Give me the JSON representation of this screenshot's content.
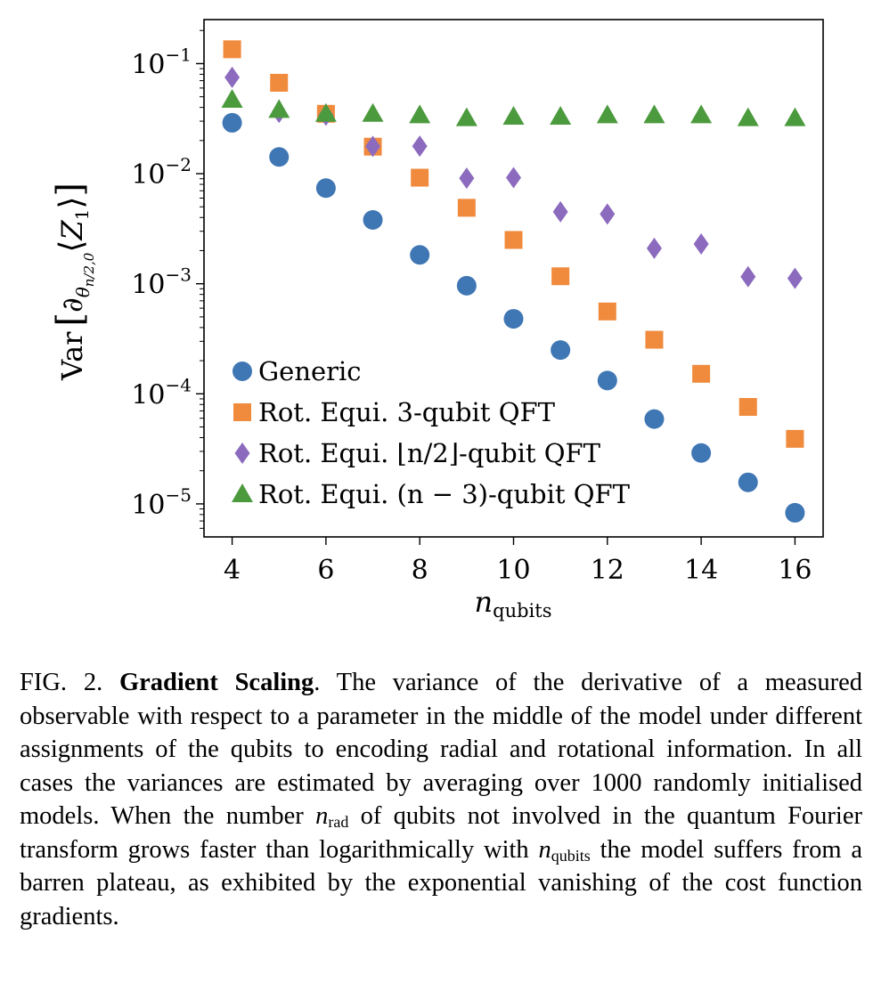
{
  "chart_data": {
    "type": "scatter",
    "xlabel": "n_qubits",
    "ylabel": "Var [∂θn/2,0 ⟨Z1⟩]",
    "xlim": [
      3.4,
      16.6
    ],
    "ylim_log10": [
      -5.3,
      -0.6
    ],
    "yscale": "log",
    "x_ticks": [
      4,
      6,
      8,
      10,
      12,
      14,
      16
    ],
    "y_ticks": [
      {
        "exp": -1,
        "label": "10",
        "sup": "−1"
      },
      {
        "exp": -2,
        "label": "10",
        "sup": "−2"
      },
      {
        "exp": -3,
        "label": "10",
        "sup": "−3"
      },
      {
        "exp": -4,
        "label": "10",
        "sup": "−4"
      },
      {
        "exp": -5,
        "label": "10",
        "sup": "−5"
      }
    ],
    "legend_position": "lower-left",
    "series": [
      {
        "name": "Generic",
        "marker": "circle",
        "color": "#3f76b4",
        "x": [
          4,
          5,
          6,
          7,
          8,
          9,
          10,
          11,
          12,
          13,
          14,
          15,
          16
        ],
        "y": [
          0.029,
          0.0142,
          0.0074,
          0.0038,
          0.00183,
          0.00096,
          0.00048,
          0.00025,
          0.000132,
          5.9e-05,
          2.9e-05,
          1.57e-05,
          8.3e-06
        ]
      },
      {
        "name": "Rot. Equi. 3-qubit QFT",
        "marker": "square",
        "color": "#f08a3c",
        "x": [
          4,
          5,
          6,
          7,
          8,
          9,
          10,
          11,
          12,
          13,
          14,
          15,
          16
        ],
        "y": [
          0.135,
          0.067,
          0.035,
          0.0176,
          0.0092,
          0.0049,
          0.0025,
          0.00117,
          0.00056,
          0.00031,
          0.000152,
          7.6e-05,
          3.9e-05
        ]
      },
      {
        "name": "Rot. Equi. ⌊n/2⌋-qubit QFT",
        "marker": "diamond",
        "color": "#8c6bbf",
        "x": [
          4,
          5,
          6,
          7,
          8,
          9,
          10,
          11,
          12,
          13,
          14,
          15,
          16
        ],
        "y": [
          0.075,
          0.036,
          0.034,
          0.0177,
          0.0178,
          0.0091,
          0.0092,
          0.0045,
          0.0043,
          0.0021,
          0.0023,
          0.00116,
          0.00112
        ]
      },
      {
        "name": "Rot. Equi. (n − 3)-qubit QFT",
        "marker": "triangle",
        "color": "#4c9a3e",
        "x": [
          4,
          5,
          6,
          7,
          8,
          9,
          10,
          11,
          12,
          13,
          14,
          15,
          16
        ],
        "y": [
          0.047,
          0.038,
          0.035,
          0.035,
          0.034,
          0.032,
          0.033,
          0.033,
          0.034,
          0.034,
          0.034,
          0.032,
          0.032
        ]
      }
    ]
  },
  "caption": {
    "label": "FIG. 2.",
    "title": "Gradient Scaling",
    "text_1": ". The variance of the derivative of a measured observable with respect to a parameter in the middle of the model under different assignments of the qubits to encoding radial and rotational information. In all cases the variances are estimated by averaging over 1000 randomly initialised models. When the number ",
    "var_n": "n",
    "var_rad": "rad",
    "text_2": " of qubits not involved in the quantum Fourier transform grows faster than logarithmically with ",
    "var_n2": "n",
    "var_qubits": "qubits",
    "text_3": " the model suffers from a barren plateau, as exhibited by the exponential vanishing of the cost function gradients."
  }
}
